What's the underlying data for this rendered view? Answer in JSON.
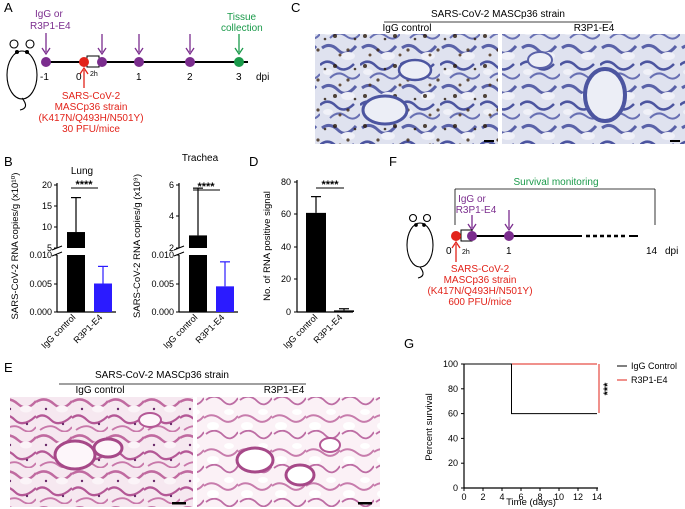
{
  "panels": {
    "A": "A",
    "B": "B",
    "C": "C",
    "D": "D",
    "E": "E",
    "F": "F",
    "G": "G"
  },
  "panelA": {
    "treat_label_1": "IgG or",
    "treat_label_2": "R3P1-E4",
    "tissue_1": "Tissue",
    "tissue_2": "collection",
    "ticks": [
      "-1",
      "0",
      "1",
      "2",
      "3"
    ],
    "gap_label": "2h",
    "unit": "dpi",
    "virus": [
      "SARS-CoV-2",
      "MASCp36 strain",
      "(K417N/Q493H/N501Y)",
      "30 PFU/mice"
    ],
    "colors": {
      "purple": "#7b2d8e",
      "red": "#e2231a",
      "green": "#1a9a4a"
    }
  },
  "panelB": {
    "lung_title": "Lung",
    "trachea_title": "Trachea",
    "lung_ylabel": "SARS-CoV-2 RNA copies/g (x10¹⁰)",
    "trachea_ylabel": "SARS-CoV-2 RNA copies/g (x10⁹)",
    "lung_upper_ticks": [
      "20",
      "15",
      "10",
      "5"
    ],
    "trachea_upper_ticks": [
      "6",
      "4",
      "2"
    ],
    "lower_ticks": [
      "0.010",
      "0.005",
      "0.000"
    ],
    "categories": [
      "IgG control",
      "R3P1-E4"
    ],
    "sig": "****",
    "colors": {
      "igg": "#000000",
      "r3p1": "#2b1bff"
    }
  },
  "panelC": {
    "title": "SARS-CoV-2 MASCp36 strain",
    "left_label": "IgG control",
    "right_label": "R3P1-E4"
  },
  "panelD": {
    "ylabel": "No. of RNA positive signal",
    "ticks": [
      "80",
      "60",
      "40",
      "20",
      "0"
    ],
    "categories": [
      "IgG control",
      "R3P1-E4"
    ],
    "sig": "****"
  },
  "panelE": {
    "title": "SARS-CoV-2 MASCp36 strain",
    "left_label": "IgG control",
    "right_label": "R3P1-E4"
  },
  "panelF": {
    "monitor": "Survival monitoring",
    "treat_1": "IgG or",
    "treat_2": "R3P1-E4",
    "ticks": [
      "0",
      "1",
      "14"
    ],
    "gap_label": "2h",
    "unit": "dpi",
    "virus": [
      "SARS-CoV-2",
      "MASCp36 strain",
      "(K417N/Q493H/N501Y)",
      "600 PFU/mice"
    ]
  },
  "chart_data": [
    {
      "type": "bar",
      "title": "Lung",
      "ylabel": "SARS-CoV-2 RNA copies/g (x10¹⁰)",
      "categories": [
        "IgG control",
        "R3P1-E4"
      ],
      "values": [
        8.8,
        0.005
      ],
      "errors_upper": [
        17.0,
        0.008
      ],
      "broken_axis": {
        "lower": [
          0,
          0.01
        ],
        "upper": [
          5,
          20
        ]
      },
      "significance": "****"
    },
    {
      "type": "bar",
      "title": "Trachea",
      "ylabel": "SARS-CoV-2 RNA copies/g (x10⁹)",
      "categories": [
        "IgG control",
        "R3P1-E4"
      ],
      "values": [
        2.8,
        0.0045
      ],
      "errors_upper": [
        5.8,
        0.0088
      ],
      "broken_axis": {
        "lower": [
          0,
          0.01
        ],
        "upper": [
          2,
          6
        ]
      },
      "significance": "****"
    },
    {
      "type": "bar",
      "ylabel": "No. of RNA positive signal",
      "categories": [
        "IgG control",
        "R3P1-E4"
      ],
      "values": [
        61,
        1
      ],
      "errors_upper": [
        71,
        2
      ],
      "ylim": [
        0,
        80
      ],
      "significance": "****"
    },
    {
      "type": "line",
      "xlabel": "Time (days)",
      "ylabel": "Percent survival",
      "xticks": [
        "0",
        "2",
        "4",
        "6",
        "8",
        "10",
        "12",
        "14"
      ],
      "yticks": [
        "0",
        "20",
        "40",
        "60",
        "80",
        "100"
      ],
      "xlim": [
        0,
        14
      ],
      "ylim": [
        0,
        100
      ],
      "legend_position": "top-right",
      "significance": "***",
      "series": [
        {
          "name": "IgG Control",
          "color": "#000000",
          "points": [
            [
              0,
              100
            ],
            [
              5,
              100
            ],
            [
              5,
              60
            ],
            [
              14,
              60
            ]
          ]
        },
        {
          "name": "R3P1-E4",
          "color": "#e2231a",
          "points": [
            [
              0,
              100
            ],
            [
              14,
              100
            ]
          ]
        }
      ]
    }
  ]
}
